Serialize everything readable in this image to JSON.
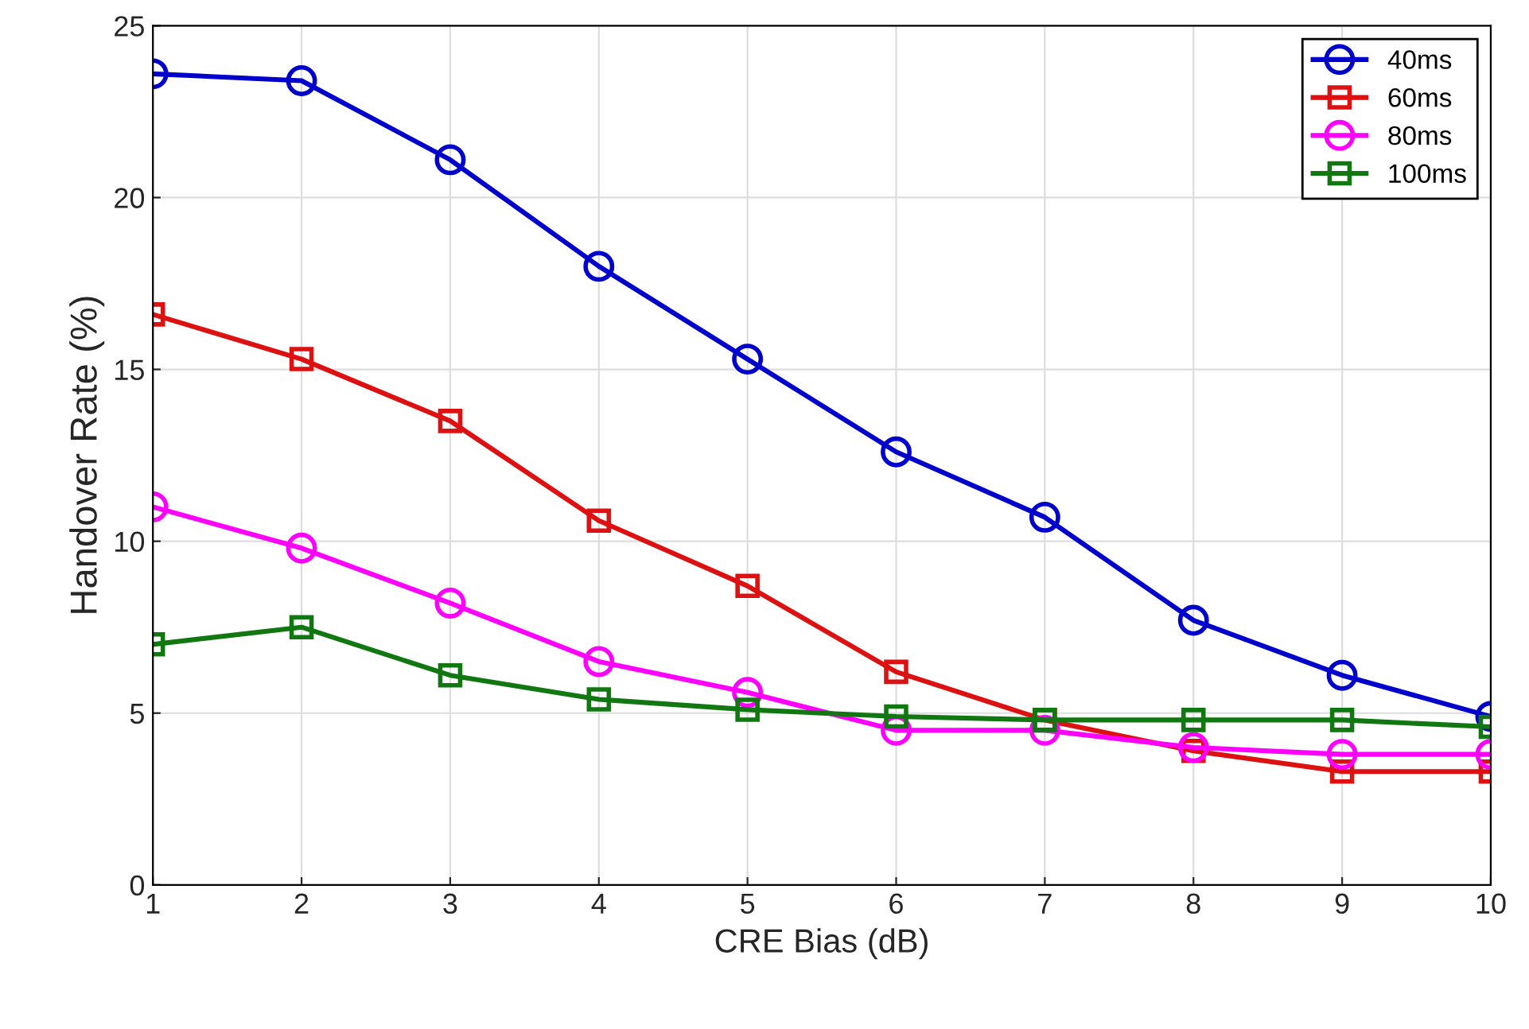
{
  "chart_data": {
    "type": "line",
    "xlabel": "CRE Bias (dB)",
    "ylabel": "Handover Rate (%)",
    "x": [
      1,
      2,
      3,
      4,
      5,
      6,
      7,
      8,
      9,
      10
    ],
    "xlim": [
      1,
      10
    ],
    "xticks": [
      1,
      2,
      3,
      4,
      5,
      6,
      7,
      8,
      9,
      10
    ],
    "ylim": [
      0,
      25
    ],
    "yticks": [
      0,
      5,
      10,
      15,
      20,
      25
    ],
    "grid": true,
    "legend": "top right",
    "series": [
      {
        "name": "40ms",
        "color": "#0000cc",
        "marker": "circle",
        "values": [
          23.6,
          23.4,
          21.1,
          18.0,
          15.3,
          12.6,
          10.7,
          7.7,
          6.1,
          4.9
        ]
      },
      {
        "name": "60ms",
        "color": "#dd1111",
        "marker": "square",
        "values": [
          16.6,
          15.3,
          13.5,
          10.6,
          8.7,
          6.2,
          4.8,
          3.9,
          3.3,
          3.3
        ]
      },
      {
        "name": "80ms",
        "color": "#ff00ff",
        "marker": "circle",
        "values": [
          11.0,
          9.8,
          8.2,
          6.5,
          5.6,
          4.5,
          4.5,
          4.0,
          3.8,
          3.8
        ]
      },
      {
        "name": "100ms",
        "color": "#117711",
        "marker": "square",
        "values": [
          7.0,
          7.5,
          6.1,
          5.4,
          5.1,
          4.9,
          4.8,
          4.8,
          4.8,
          4.6
        ]
      }
    ]
  }
}
